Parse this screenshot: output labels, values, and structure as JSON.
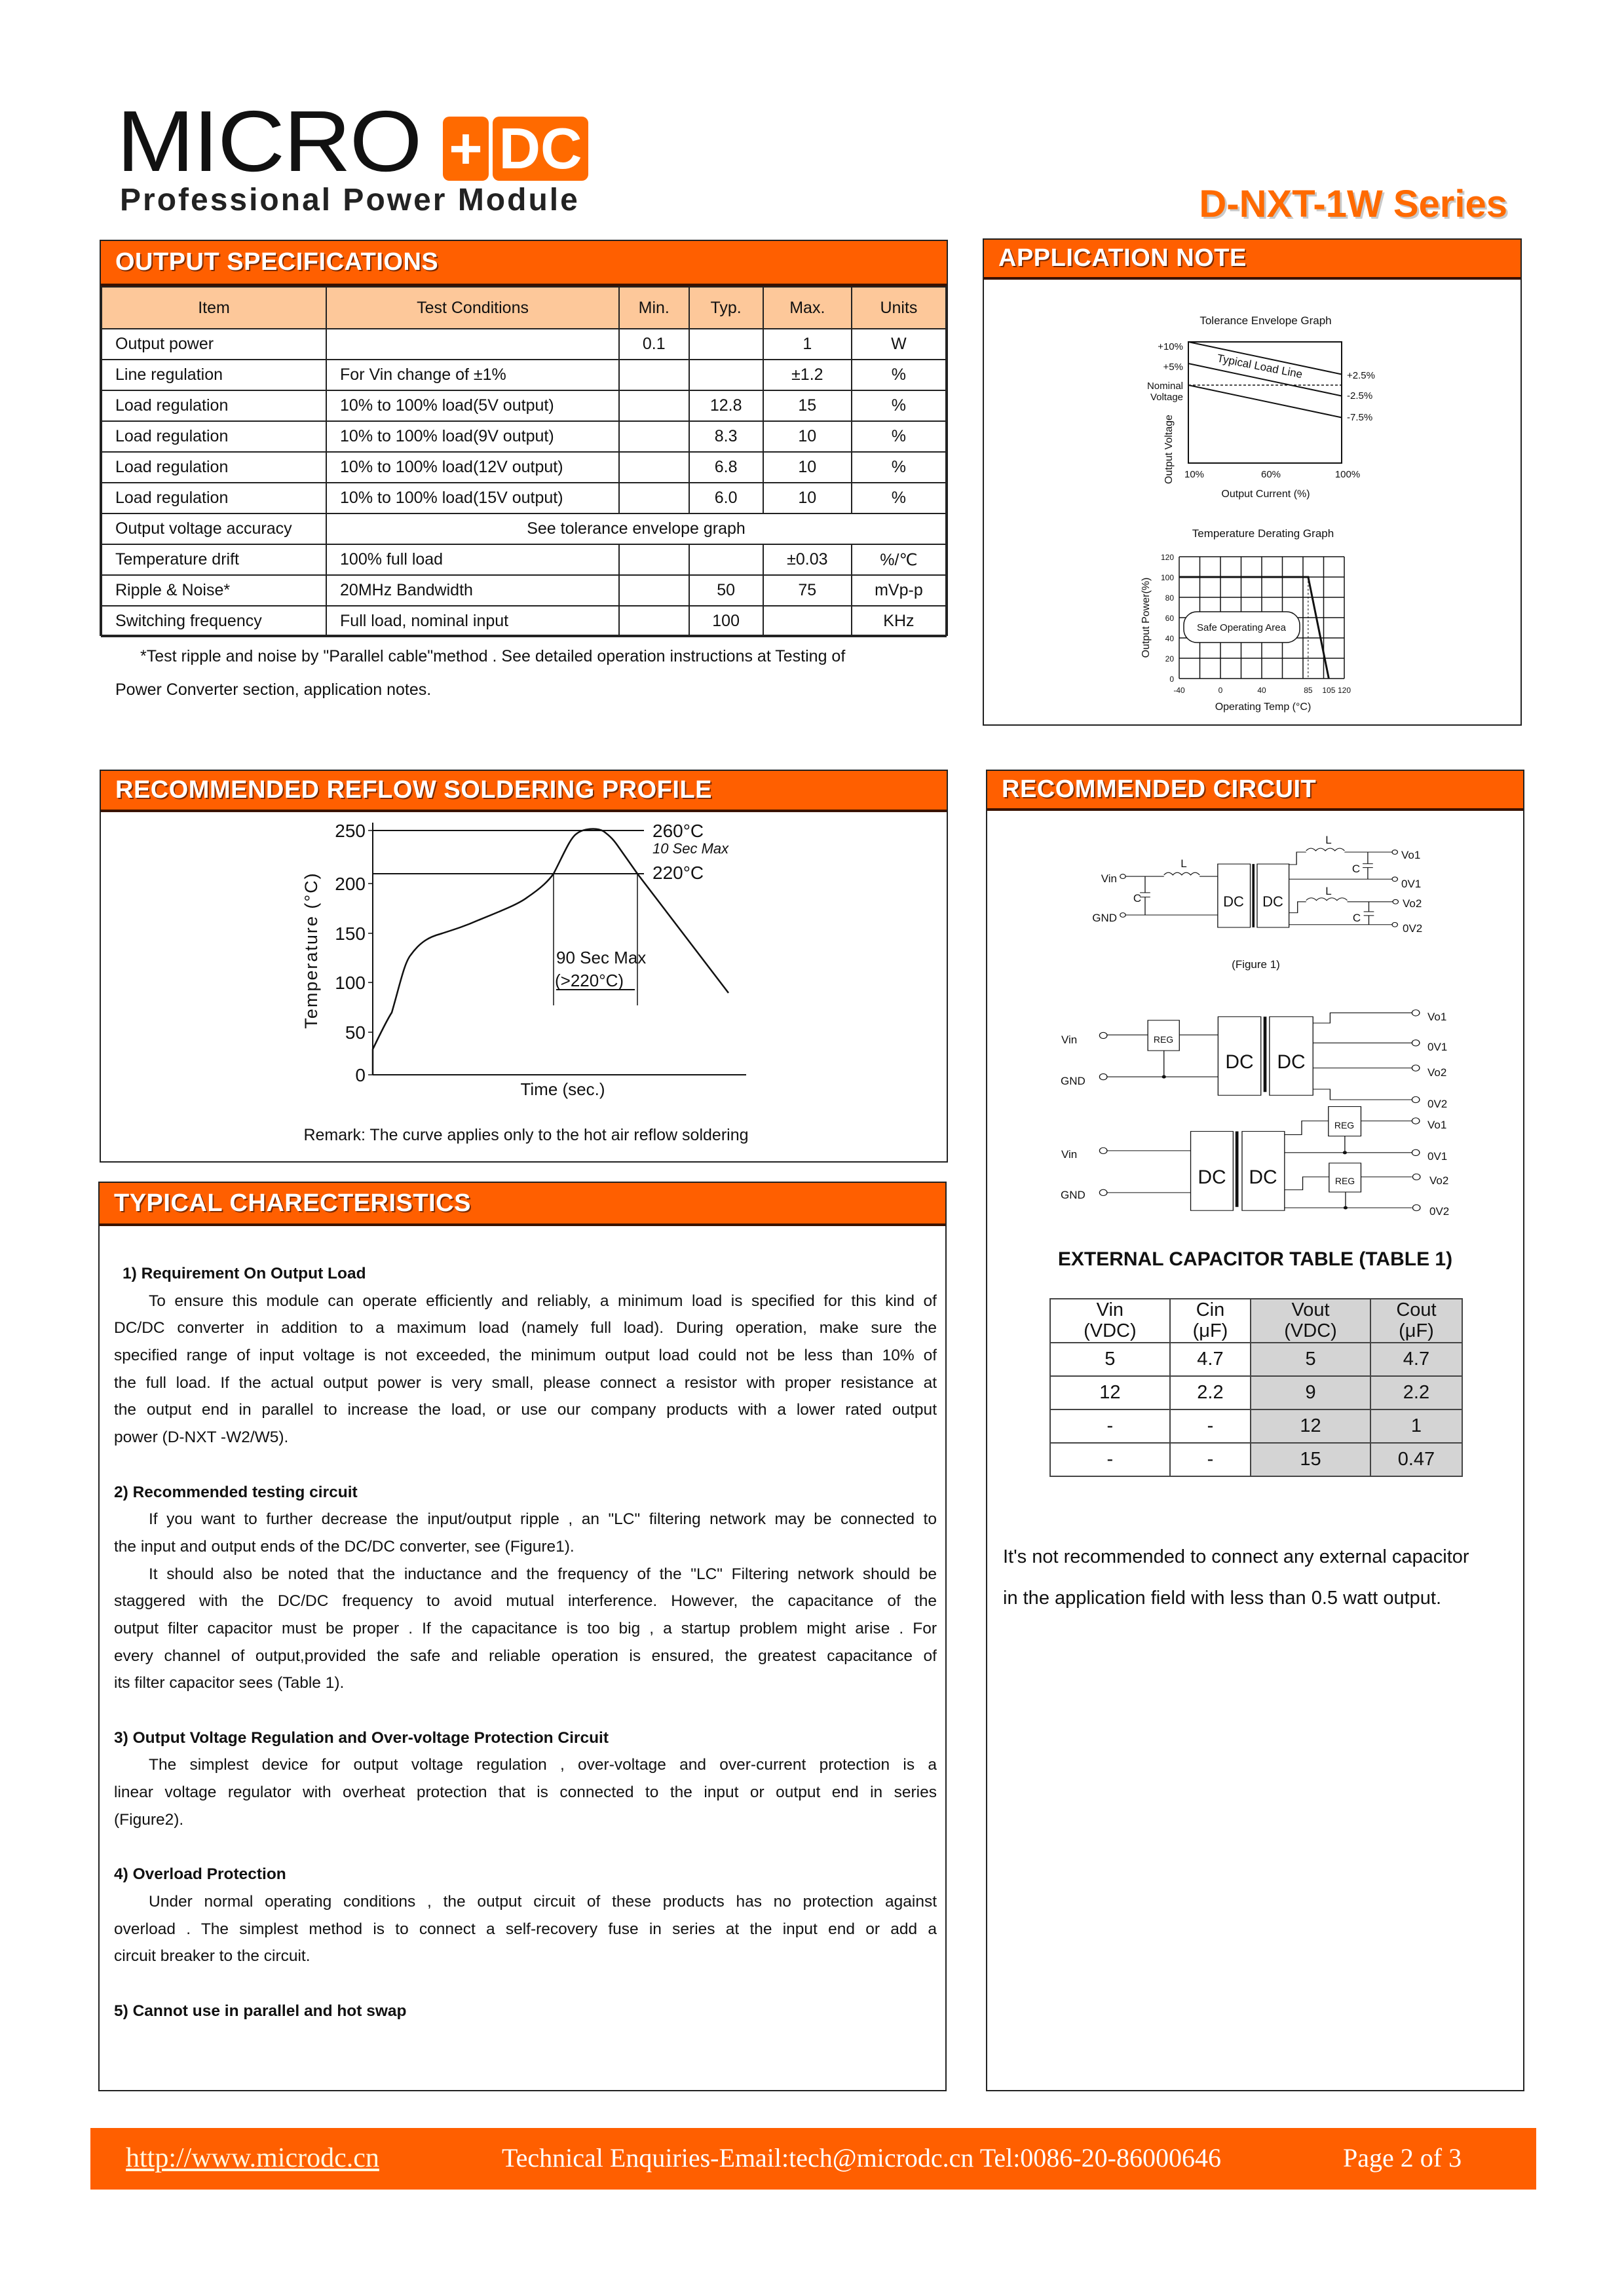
{
  "header": {
    "logo_text": "MICRO",
    "logo_accent": "DC",
    "tagline": "Professional Power Module",
    "series_title": "D-NXT-1W Series"
  },
  "colors": {
    "brand_orange": "#FF5F00",
    "table_header": "#FDC89A",
    "table_shade": "#D4D4D4"
  },
  "output_specs": {
    "title": "OUTPUT SPECIFICATIONS",
    "columns": [
      "Item",
      "Test Conditions",
      "Min.",
      "Typ.",
      "Max.",
      "Units"
    ],
    "rows": [
      [
        "Output power",
        "",
        "0.1",
        "",
        "1",
        "W"
      ],
      [
        "Line regulation",
        "For Vin change of  ±1%",
        "",
        "",
        "±1.2",
        "%"
      ],
      [
        "Load regulation",
        "10% to 100% load(5V output)",
        "",
        "12.8",
        "15",
        "%"
      ],
      [
        "Load regulation",
        "10% to 100% load(9V output)",
        "",
        "8.3",
        "10",
        "%"
      ],
      [
        "Load regulation",
        "10% to 100% load(12V output)",
        "",
        "6.8",
        "10",
        "%"
      ],
      [
        "Load regulation",
        "10% to 100% load(15V output)",
        "",
        "6.0",
        "10",
        "%"
      ],
      [
        "Output voltage accuracy",
        "See tolerance envelope graph"
      ],
      [
        "Temperature drift",
        "100% full load",
        "",
        "",
        "±0.03",
        "%/℃"
      ],
      [
        "Ripple & Noise*",
        "20MHz Bandwidth",
        "",
        "50",
        "75",
        "mVp-p"
      ],
      [
        "Switching frequency",
        "Full load, nominal input",
        "",
        "100",
        "",
        "KHz"
      ]
    ],
    "footnote": [
      "*Test ripple and noise by \"Parallel cable\"method . See detailed operation    instructions    at Testing of",
      "Power Converter section, application notes."
    ]
  },
  "application_note": {
    "title": "APPLICATION NOTE",
    "tolerance_graph": {
      "title": "Tolerance Envelope Graph",
      "ylabel": "Output Voltage",
      "xlabel": "Output Current (%)",
      "y_labels": [
        "+10%",
        "+5%",
        "Nominal",
        "Voltage"
      ],
      "x_ticks": [
        "10%",
        "60%",
        "100%"
      ],
      "right_labels": [
        "+2.5%",
        "-2.5%",
        "-7.5%"
      ],
      "line_label": "Typical Load Line",
      "lines": [
        {
          "x": [
            10,
            100
          ],
          "y": [
            10,
            2.5
          ]
        },
        {
          "x": [
            10,
            100
          ],
          "y": [
            5,
            -2.5
          ]
        },
        {
          "x": [
            10,
            100
          ],
          "y": [
            0,
            -7.5
          ]
        }
      ],
      "nominal": 0
    },
    "derating_graph": {
      "title": "Temperature Derating Graph",
      "ylabel": "Output Power(%)",
      "xlabel": "Operating Temp (°C)",
      "x_ticks": [
        -40,
        0,
        40,
        85,
        105,
        120
      ],
      "y_ticks": [
        0,
        20,
        40,
        60,
        80,
        100,
        120
      ],
      "xlim": [
        -40,
        120
      ],
      "ylim": [
        0,
        120
      ],
      "curve": {
        "x": [
          -40,
          85,
          105
        ],
        "y": [
          100,
          100,
          0
        ]
      },
      "area_label": "Safe Operating Area"
    }
  },
  "reflow": {
    "title": "RECOMMENDED REFLOW SOLDERING PROFILE",
    "ylabel": "Temperature (°C)",
    "xlabel": "Time (sec.)",
    "y_ticks": [
      "250",
      "200",
      "150",
      "100",
      "50",
      "0"
    ],
    "peak_label": "260°C",
    "peak_time": "10 Sec Max",
    "liquidus_label": "220°C",
    "window_label": "90 Sec Max",
    "window_sub": "(>220°C)",
    "remark": "Remark: The curve applies only to the hot air reflow soldering"
  },
  "circuit": {
    "title": "RECOMMENDED CIRCUIT",
    "labels": {
      "vin": "Vin",
      "gnd": "GND",
      "l": "L",
      "c": "C",
      "dc": "DC",
      "reg": "REG",
      "vo1": "Vo1",
      "ov1": "0V1",
      "vo2": "Vo2",
      "ov2": "0V2"
    },
    "figure1_caption": "(Figure 1)",
    "table_title": "EXTERNAL CAPACITOR TABLE (TABLE 1)",
    "table_headers": [
      [
        "Vin",
        "(VDC)"
      ],
      [
        "Cin",
        "(μF)"
      ],
      [
        "Vout",
        "(VDC)"
      ],
      [
        "Cout",
        "(μF)"
      ]
    ],
    "table_rows": [
      [
        "5",
        "4.7",
        "5",
        "4.7"
      ],
      [
        "12",
        "2.2",
        "9",
        "2.2"
      ],
      [
        "-",
        "-",
        "12",
        "1"
      ],
      [
        "-",
        "-",
        "15",
        "0.47"
      ]
    ],
    "note": [
      "It's not recommended to connect any external capacitor",
      "in the application field with less than 0.5 watt output."
    ]
  },
  "typical": {
    "title": "TYPICAL CHARECTERISTICS",
    "sections": [
      {
        "heading": "1) Requirement On Output Load",
        "paras": [
          [
            "To ensure this module can operate efficiently and reliably, a minimum load is specified for this kind of",
            "DC/DC converter in addition to a maximum load (namely full load). During operation, make sure    the",
            "specified range of input voltage is not exceeded, the minimum output load could not be less than 10% of",
            "the full load. If the actual output power is very small, please connect a resistor with proper resistance at",
            "the output end in parallel to increase the load, or use our company products with a lower rated output",
            "power (D-NXT -W2/W5)."
          ]
        ]
      },
      {
        "heading": "2) Recommended testing circuit",
        "paras": [
          [
            "If you want to further decrease the input/output ripple , an \"LC\" filtering network may be connected to",
            "the input and output ends of the DC/DC converter, see (Figure1)."
          ],
          [
            "It should also be noted that the inductance and the frequency of the \"LC\" Filtering network should be",
            "staggered with the DC/DC frequency to avoid mutual interference. However, the capacitance of the",
            "output filter capacitor must be proper . If the capacitance is too big , a startup problem might arise . For",
            "every channel of output,provided the safe and reliable operation is ensured, the greatest capacitance of",
            "its filter capacitor sees (Table 1)."
          ]
        ]
      },
      {
        "heading": "3) Output Voltage Regulation and Over-voltage Protection Circuit",
        "paras": [
          [
            "The simplest device for output voltage regulation , over-voltage and over-current protection is a",
            "linear voltage regulator with overheat protection that is connected to the input or output end in series",
            "(Figure2)."
          ]
        ]
      },
      {
        "heading": "4) Overload Protection",
        "paras": [
          [
            "Under normal operating conditions , the output circuit of these products has no protection against",
            "overload . The simplest method is to connect a self-recovery fuse in series at the input end or add a",
            "circuit breaker to the circuit."
          ]
        ]
      },
      {
        "heading": "5) Cannot use in parallel and hot swap",
        "paras": []
      }
    ]
  },
  "footer": {
    "url": "http://www.microdc.cn",
    "contact": "Technical Enquiries-Email:tech@microdc.cn Tel:0086-20-86000646",
    "page": "Page 2 of 3"
  }
}
